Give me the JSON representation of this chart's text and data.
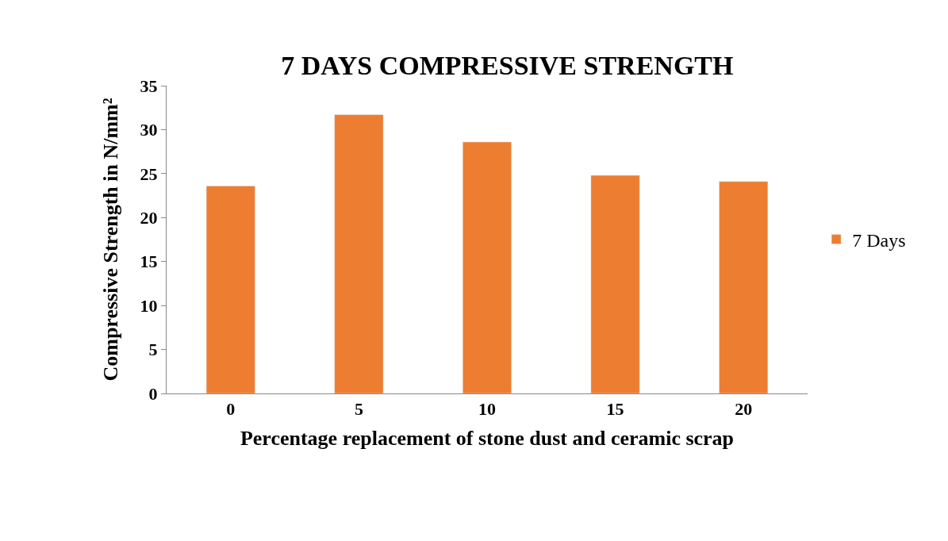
{
  "chart_data": {
    "type": "bar",
    "title": "7 DAYS COMPRESSIVE STRENGTH",
    "xlabel": "Percentage replacement of stone dust and ceramic scrap",
    "ylabel": "Compressive Strength in N/mm²",
    "categories": [
      "0",
      "5",
      "10",
      "15",
      "20"
    ],
    "series": [
      {
        "name": "7 Days",
        "color": "#ed7d31",
        "values": [
          23.6,
          31.7,
          28.6,
          24.8,
          24.1
        ]
      }
    ],
    "ylim": [
      0,
      35
    ],
    "yticks": [
      0,
      5,
      10,
      15,
      20,
      25,
      30,
      35
    ],
    "grid": false,
    "legend": "right"
  }
}
